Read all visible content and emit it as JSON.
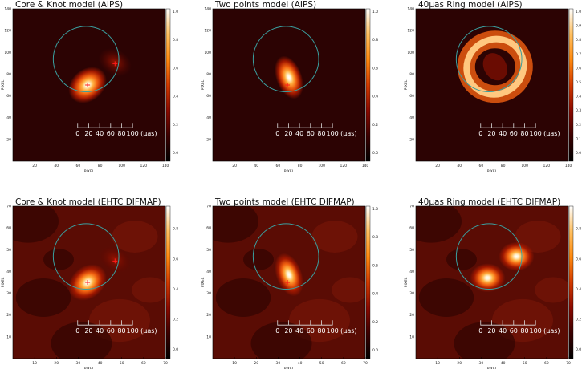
{
  "scale_bar": {
    "labels": [
      "0",
      "20",
      "40",
      "60",
      "80",
      "100"
    ],
    "unit": "(μas)"
  },
  "axis_label": "PIXEL",
  "colorbar_colors": [
    "#000000",
    "#3b0000",
    "#8b0a00",
    "#d23a00",
    "#ff8a10",
    "#ffc060",
    "#ffffff"
  ],
  "circle_color": "#3aa0a0",
  "marker_color": "#ff1a1a",
  "panels": [
    {
      "title": "Core & Knot model (AIPS)",
      "model": "core-knot",
      "pixel_range": [
        0,
        140
      ],
      "x_ticks": [
        "20",
        "40",
        "60",
        "80",
        "100",
        "120",
        "140"
      ],
      "y_ticks": [
        "20",
        "40",
        "60",
        "80",
        "100",
        "120",
        "140"
      ],
      "colorbar_ticks": [
        "0.0",
        "0.2",
        "0.4",
        "0.6",
        "0.8",
        "1.0"
      ]
    },
    {
      "title": "Two points  model (AIPS)",
      "model": "two-points",
      "pixel_range": [
        0,
        140
      ],
      "x_ticks": [
        "20",
        "40",
        "60",
        "80",
        "100",
        "120",
        "140"
      ],
      "y_ticks": [
        "20",
        "40",
        "60",
        "80",
        "100",
        "120",
        "140"
      ],
      "colorbar_ticks": [
        "0.0",
        "0.2",
        "0.4",
        "0.6",
        "0.8",
        "1.0"
      ]
    },
    {
      "title": "40μas Ring model (AIPS)",
      "model": "ring",
      "pixel_range": [
        0,
        140
      ],
      "x_ticks": [
        "20",
        "40",
        "60",
        "80",
        "100",
        "120",
        "140"
      ],
      "y_ticks": [
        "20",
        "40",
        "60",
        "80",
        "100",
        "120",
        "140"
      ],
      "colorbar_ticks": [
        "0.0",
        "0.1",
        "0.2",
        "0.3",
        "0.4",
        "0.5",
        "0.6",
        "0.7",
        "0.8",
        "0.9",
        "1.0"
      ]
    },
    {
      "title": "Core & Knot model (EHTC DIFMAP)",
      "model": "core-knot",
      "pixel_range": [
        0,
        70
      ],
      "x_ticks": [
        "10",
        "20",
        "30",
        "40",
        "50",
        "60",
        "70"
      ],
      "y_ticks": [
        "10",
        "20",
        "30",
        "40",
        "50",
        "60",
        "70"
      ],
      "colorbar_ticks": [
        "0.0",
        "0.2",
        "0.4",
        "0.6",
        "0.8"
      ]
    },
    {
      "title": "Two points  model (EHTC DIFMAP)",
      "model": "two-points",
      "pixel_range": [
        0,
        70
      ],
      "x_ticks": [
        "10",
        "20",
        "30",
        "40",
        "50",
        "60",
        "70"
      ],
      "y_ticks": [
        "10",
        "20",
        "30",
        "40",
        "50",
        "60",
        "70"
      ],
      "colorbar_ticks": [
        "0.0",
        "0.2",
        "0.4",
        "0.6",
        "0.8",
        "1.0"
      ]
    },
    {
      "title": "40μas Ring model (EHTC DIFMAP)",
      "model": "ring",
      "pixel_range": [
        0,
        70
      ],
      "x_ticks": [
        "10",
        "20",
        "30",
        "40",
        "50",
        "60",
        "70"
      ],
      "y_ticks": [
        "10",
        "20",
        "30",
        "40",
        "50",
        "60",
        "70"
      ],
      "colorbar_ticks": [
        "0.0",
        "0.2",
        "0.4",
        "0.6",
        "0.8"
      ]
    }
  ]
}
